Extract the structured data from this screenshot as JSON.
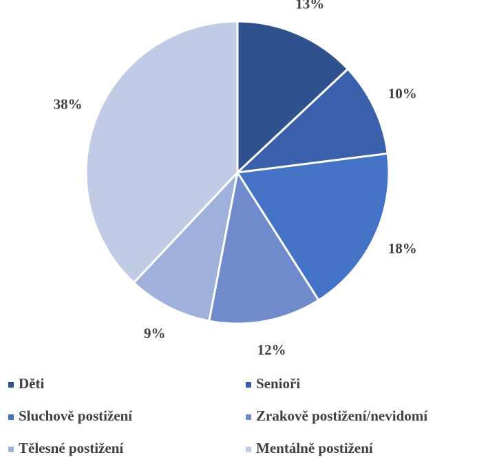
{
  "chart_data": {
    "type": "pie",
    "categories": [
      "Děti",
      "Senioři",
      "Sluchově postižení",
      "Zrakově postižení/nevidomí",
      "Tělesné postižení",
      "Mentálně postižení"
    ],
    "values": [
      13,
      10,
      18,
      12,
      9,
      38
    ],
    "value_labels": [
      "13%",
      "10%",
      "18%",
      "12%",
      "9%",
      "38%"
    ],
    "colors": [
      "#2f528f",
      "#3a60ab",
      "#4472c4",
      "#6f8bcc",
      "#9fb0da",
      "#c1cbe6"
    ],
    "legend": "bottom"
  }
}
